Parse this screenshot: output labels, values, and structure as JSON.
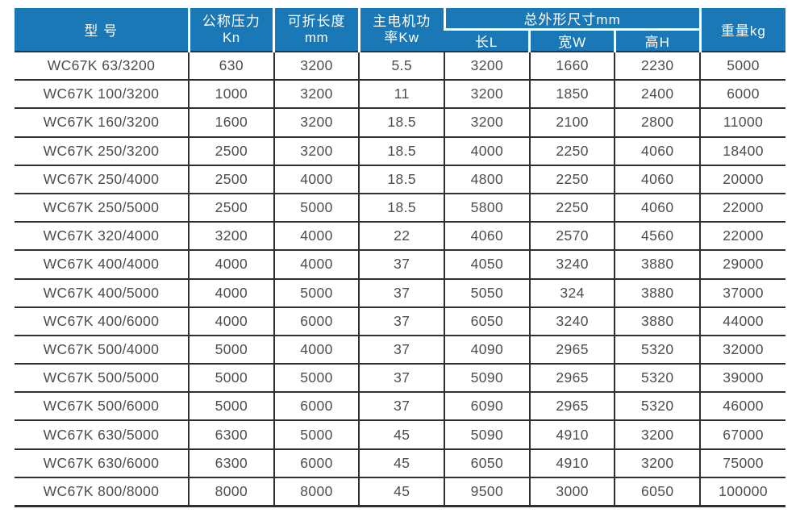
{
  "colors": {
    "header_bg": "#1a78b6",
    "header_text": "#ffffff",
    "body_border": "#303030",
    "body_text": "#4d4d4d"
  },
  "header": {
    "model": "型 号",
    "pressure_line1": "公称压力",
    "pressure_line2": "Kn",
    "fold_length_line1": "可折长度",
    "fold_length_line2": "mm",
    "motor_power_line1": "主电机功",
    "motor_power_line2": "率Kw",
    "dims_group": "总外形尺寸mm",
    "dim_l": "长L",
    "dim_w": "宽W",
    "dim_h": "高H",
    "weight": "重量kg"
  },
  "chart_data": {
    "type": "table",
    "title": "",
    "field_names": [
      "model",
      "pressure_kn",
      "fold_length_mm",
      "motor_power_kw",
      "dim_length_l",
      "dim_width_w",
      "dim_height_h",
      "weight_kg"
    ],
    "headers": [
      "型 号",
      "公称压力 Kn",
      "可折长度 mm",
      "主电机功率Kw",
      "总外形尺寸mm 长L",
      "总外形尺寸mm 宽W",
      "总外形尺寸mm 高H",
      "重量kg"
    ],
    "rows": [
      [
        "WC67K 63/3200",
        "630",
        "3200",
        "5.5",
        "3200",
        "1660",
        "2230",
        "5000"
      ],
      [
        "WC67K 100/3200",
        "1000",
        "3200",
        "11",
        "3200",
        "1850",
        "2400",
        "6000"
      ],
      [
        "WC67K 160/3200",
        "1600",
        "3200",
        "18.5",
        "3200",
        "2100",
        "2800",
        "11000"
      ],
      [
        "WC67K 250/3200",
        "2500",
        "3200",
        "18.5",
        "4000",
        "2250",
        "4060",
        "18400"
      ],
      [
        "WC67K 250/4000",
        "2500",
        "4000",
        "18.5",
        "4800",
        "2250",
        "4060",
        "20000"
      ],
      [
        "WC67K 250/5000",
        "2500",
        "5000",
        "18.5",
        "5800",
        "2250",
        "4060",
        "22000"
      ],
      [
        "WC67K 320/4000",
        "3200",
        "4000",
        "22",
        "4060",
        "2570",
        "4560",
        "22000"
      ],
      [
        "WC67K 400/4000",
        "4000",
        "4000",
        "37",
        "4050",
        "3240",
        "3880",
        "29000"
      ],
      [
        "WC67K 400/5000",
        "4000",
        "5000",
        "37",
        "5050",
        "324",
        "3880",
        "37000"
      ],
      [
        "WC67K 400/6000",
        "4000",
        "6000",
        "37",
        "6050",
        "3240",
        "3880",
        "44000"
      ],
      [
        "WC67K 500/4000",
        "5000",
        "4000",
        "37",
        "4090",
        "2965",
        "5320",
        "32000"
      ],
      [
        "WC67K 500/5000",
        "5000",
        "5000",
        "37",
        "5090",
        "2965",
        "5320",
        "39000"
      ],
      [
        "WC67K 500/6000",
        "5000",
        "6000",
        "37",
        "6090",
        "2965",
        "5320",
        "46000"
      ],
      [
        "WC67K 630/5000",
        "6300",
        "5000",
        "45",
        "5090",
        "4910",
        "3200",
        "67000"
      ],
      [
        "WC67K 630/6000",
        "6300",
        "6000",
        "45",
        "6050",
        "4910",
        "3200",
        "75000"
      ],
      [
        "WC67K 800/8000",
        "8000",
        "8000",
        "45",
        "9500",
        "3000",
        "6050",
        "100000"
      ]
    ]
  }
}
